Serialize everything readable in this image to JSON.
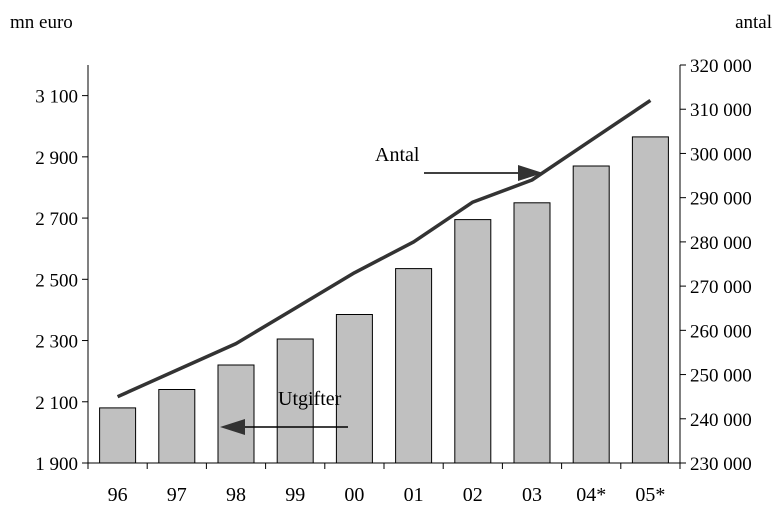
{
  "chart_data": {
    "type": "bar",
    "categories": [
      "96",
      "97",
      "98",
      "99",
      "00",
      "01",
      "02",
      "03",
      "04*",
      "05*"
    ],
    "left_axis": {
      "unit_label": "mn euro",
      "ylim": [
        1900,
        3200
      ],
      "ticks": [
        1900,
        2100,
        2300,
        2500,
        2700,
        2900,
        3100
      ],
      "tick_labels": [
        "1 900",
        "2 100",
        "2 300",
        "2 500",
        "2 700",
        "2 900",
        "3 100"
      ]
    },
    "right_axis": {
      "unit_label": "antal",
      "ylim": [
        230000,
        320000
      ],
      "ticks": [
        230000,
        240000,
        250000,
        260000,
        270000,
        280000,
        290000,
        300000,
        310000,
        320000
      ],
      "tick_labels": [
        "230 000",
        "240 000",
        "250 000",
        "260 000",
        "270 000",
        "280 000",
        "290 000",
        "300 000",
        "310 000",
        "320 000"
      ]
    },
    "series": [
      {
        "name": "Utgifter",
        "type": "bar",
        "axis": "left",
        "color": "#c0c0c0",
        "values": [
          2080,
          2140,
          2220,
          2305,
          2385,
          2535,
          2695,
          2750,
          2870,
          2965
        ]
      },
      {
        "name": "Antal",
        "type": "line",
        "axis": "right",
        "color": "#333333",
        "values": [
          245000,
          251000,
          257000,
          265000,
          273000,
          280000,
          289000,
          294000,
          303000,
          312000
        ]
      }
    ],
    "grid": false,
    "legend": "none"
  }
}
